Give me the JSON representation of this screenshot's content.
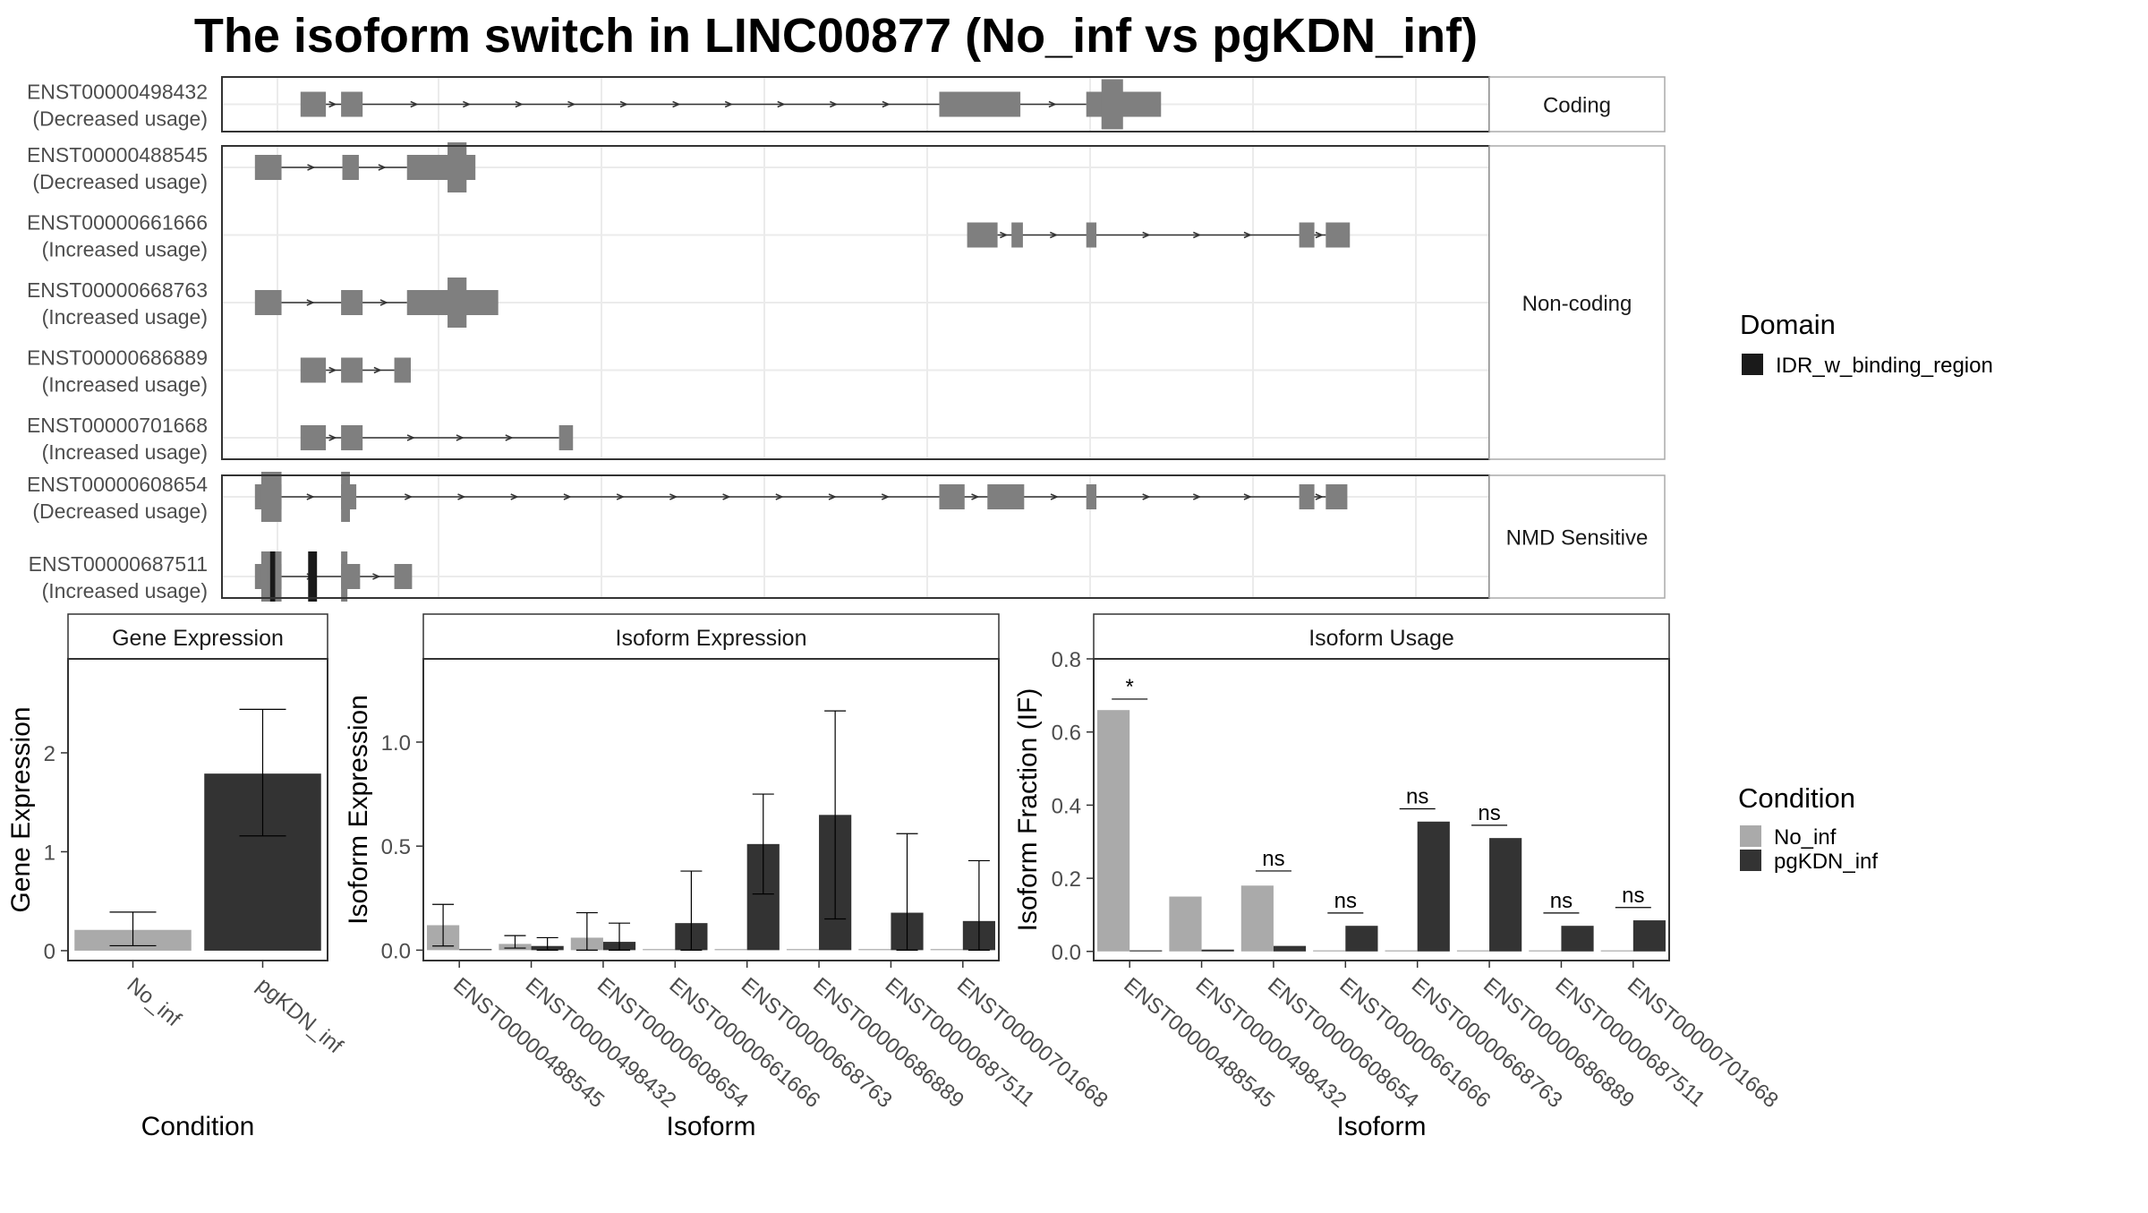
{
  "title": "The isoform switch in LINC00877 (No_inf vs pgKDN_inf)",
  "colors": {
    "exon": "#7f7f7f",
    "domain": "#1a1a1a",
    "no_inf": "#aaaaaa",
    "pgkdn_inf": "#333333",
    "grid": "#ebebeb",
    "panel_border": "#333333",
    "strip_border": "#aaaaaa"
  },
  "legends": {
    "domain": {
      "title": "Domain",
      "items": [
        {
          "label": "IDR_w_binding_region",
          "color": "#1a1a1a"
        }
      ]
    },
    "condition": {
      "title": "Condition",
      "items": [
        {
          "label": "No_inf",
          "color": "#aaaaaa"
        },
        {
          "label": "pgKDN_inf",
          "color": "#333333"
        }
      ]
    }
  },
  "transcript_groups": [
    {
      "label": "Coding",
      "transcripts": [
        {
          "id": "ENST00000498432",
          "usage": "(Decreased usage)",
          "exons": [
            [
              62,
              82
            ],
            [
              94,
              111
            ],
            [
              566,
              630
            ],
            [
              682,
              741
            ]
          ],
          "cds": [
            [
              694,
              711
            ]
          ],
          "domains": []
        }
      ]
    },
    {
      "label": "Non-coding",
      "transcripts": [
        {
          "id": "ENST00000488545",
          "usage": "(Decreased usage)",
          "exons": [
            [
              26,
              47
            ],
            [
              95,
              108
            ],
            [
              146,
              200
            ]
          ],
          "cds": [
            [
              178,
              193
            ]
          ],
          "domains": []
        },
        {
          "id": "ENST00000661666",
          "usage": "(Increased usage)",
          "exons": [
            [
              588,
              612
            ],
            [
              623,
              632
            ],
            [
              682,
              690
            ],
            [
              850,
              862
            ],
            [
              871,
              890
            ]
          ],
          "cds": [],
          "domains": []
        },
        {
          "id": "ENST00000668763",
          "usage": "(Increased usage)",
          "exons": [
            [
              26,
              47
            ],
            [
              94,
              111
            ],
            [
              146,
              218
            ]
          ],
          "cds": [
            [
              178,
              193
            ]
          ],
          "domains": []
        },
        {
          "id": "ENST00000686889",
          "usage": "(Increased usage)",
          "exons": [
            [
              62,
              82
            ],
            [
              94,
              111
            ],
            [
              136,
              149
            ]
          ],
          "cds": [],
          "domains": []
        },
        {
          "id": "ENST00000701668",
          "usage": "(Increased usage)",
          "exons": [
            [
              62,
              82
            ],
            [
              94,
              111
            ],
            [
              266,
              277
            ]
          ],
          "cds": [],
          "domains": []
        }
      ]
    },
    {
      "label": "NMD Sensitive",
      "transcripts": [
        {
          "id": "ENST00000608654",
          "usage": "(Decreased usage)",
          "exons": [
            [
              26,
              47
            ],
            [
              94,
              106
            ],
            [
              566,
              586
            ],
            [
              604,
              633
            ],
            [
              682,
              690
            ],
            [
              850,
              862
            ],
            [
              871,
              888
            ]
          ],
          "cds": [
            [
              31,
              47
            ],
            [
              94,
              101
            ]
          ],
          "domains": []
        },
        {
          "id": "ENST00000687511",
          "usage": "(Increased usage)",
          "exons": [
            [
              26,
              47
            ],
            [
              94,
              109
            ],
            [
              136,
              150
            ]
          ],
          "cds": [
            [
              31,
              47
            ],
            [
              94,
              99
            ]
          ],
          "domains": [
            [
              38,
              42
            ],
            [
              68,
              75
            ]
          ]
        }
      ]
    }
  ],
  "chart_data": [
    {
      "type": "bar",
      "title": "Gene Expression",
      "xlabel": "Condition",
      "ylabel": "Gene Expression",
      "ylim": [
        -0.1,
        2.95
      ],
      "yticks": [
        0,
        1,
        2
      ],
      "categories": [
        "No_inf",
        "pgKDN_inf"
      ],
      "values": [
        0.21,
        1.79
      ],
      "errors": [
        [
          0.05,
          0.39
        ],
        [
          1.16,
          2.44
        ]
      ]
    },
    {
      "type": "bar",
      "title": "Isoform Expression",
      "xlabel": "Isoform",
      "ylabel": "Isoform Expression",
      "ylim": [
        -0.05,
        1.4
      ],
      "yticks": [
        0.0,
        0.5,
        1.0
      ],
      "categories": [
        "ENST00000488545",
        "ENST00000498432",
        "ENST00000608654",
        "ENST00000661666",
        "ENST00000668763",
        "ENST00000686889",
        "ENST00000687511",
        "ENST00000701668"
      ],
      "series": [
        {
          "name": "No_inf",
          "values": [
            0.12,
            0.03,
            0.06,
            0.0,
            0.0,
            0.0,
            0.0,
            0.0
          ],
          "errors": [
            [
              0.02,
              0.22
            ],
            [
              0.01,
              0.07
            ],
            [
              0.0,
              0.18
            ],
            null,
            null,
            null,
            null,
            null
          ]
        },
        {
          "name": "pgKDN_inf",
          "values": [
            0.0,
            0.02,
            0.04,
            0.13,
            0.51,
            0.65,
            0.18,
            0.14
          ],
          "errors": [
            null,
            [
              0.0,
              0.06
            ],
            [
              0.0,
              0.13
            ],
            [
              0.0,
              0.38
            ],
            [
              0.27,
              0.75
            ],
            [
              0.15,
              1.15
            ],
            [
              0.0,
              0.56
            ],
            [
              0.0,
              0.43
            ]
          ]
        }
      ]
    },
    {
      "type": "bar",
      "title": "Isoform Usage",
      "xlabel": "Isoform",
      "ylabel": "Isoform Fraction (IF)",
      "ylim": [
        -0.025,
        0.8
      ],
      "yticks": [
        0.0,
        0.2,
        0.4,
        0.6,
        0.8
      ],
      "categories": [
        "ENST00000488545",
        "ENST00000498432",
        "ENST00000608654",
        "ENST00000661666",
        "ENST00000668763",
        "ENST00000686889",
        "ENST00000687511",
        "ENST00000701668"
      ],
      "series": [
        {
          "name": "No_inf",
          "values": [
            0.66,
            0.15,
            0.18,
            0.0,
            0.0,
            0.0,
            0.0,
            0.0
          ]
        },
        {
          "name": "pgKDN_inf",
          "values": [
            0.0,
            0.005,
            0.015,
            0.07,
            0.355,
            0.31,
            0.07,
            0.085
          ]
        }
      ],
      "significance": [
        "*",
        "",
        "ns",
        "ns",
        "ns",
        "ns",
        "ns",
        "ns"
      ],
      "significance_y": [
        0.69,
        null,
        0.22,
        0.105,
        0.39,
        0.345,
        0.105,
        0.12
      ]
    }
  ]
}
